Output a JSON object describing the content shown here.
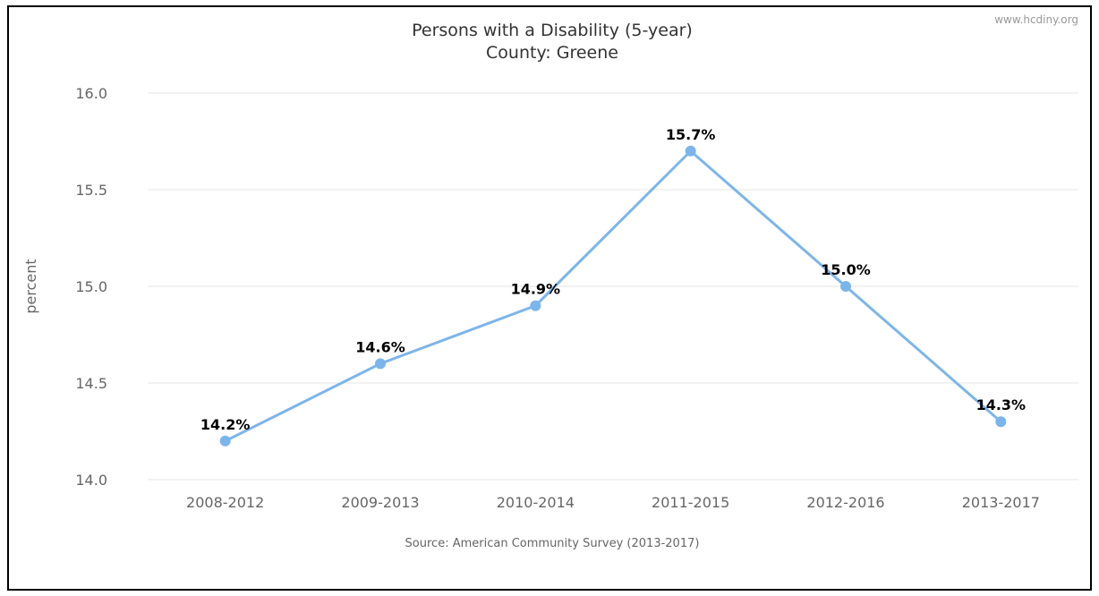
{
  "credit": "www.hcdiny.org",
  "source": "Source: American Community Survey (2013-2017)",
  "chart_data": {
    "type": "line",
    "title": "Persons with a Disability (5-year)",
    "subtitle": "County: Greene",
    "ylabel": "percent",
    "xlabel": "",
    "categories": [
      "2008-2012",
      "2009-2013",
      "2010-2014",
      "2011-2015",
      "2012-2016",
      "2013-2017"
    ],
    "values": [
      14.2,
      14.6,
      14.9,
      15.7,
      15.0,
      14.3
    ],
    "data_labels": [
      "14.2%",
      "14.6%",
      "14.9%",
      "15.7%",
      "15.0%",
      "14.3%"
    ],
    "yticks": [
      "14.0",
      "14.5",
      "15.0",
      "15.5",
      "16.0"
    ],
    "ylim": [
      14.0,
      16.0
    ],
    "grid": true,
    "legend": "none",
    "line_color": "#7cb5ec"
  }
}
